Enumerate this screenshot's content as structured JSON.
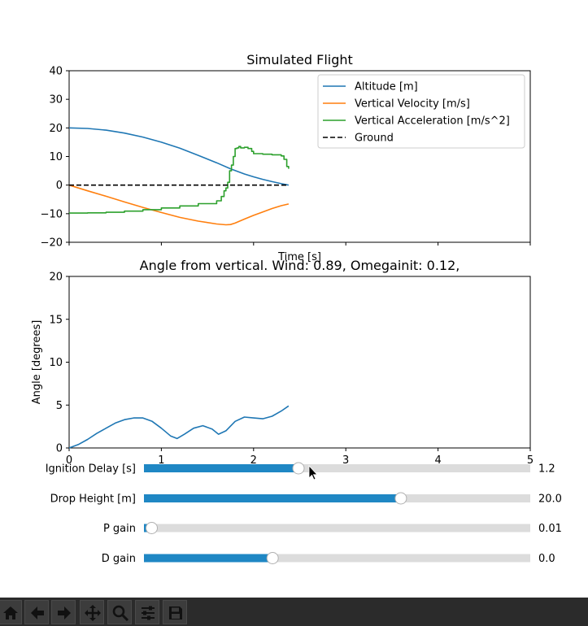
{
  "chart_data": [
    {
      "type": "line",
      "title": "Simulated Flight",
      "xlabel": "Time [s]",
      "ylabel": "",
      "xlim": [
        0,
        5
      ],
      "ylim": [
        -20,
        40
      ],
      "xticks": [
        0,
        1,
        2,
        3,
        4,
        5
      ],
      "yticks": [
        -20,
        -10,
        0,
        10,
        20,
        30,
        40
      ],
      "ytick_labels": [
        "−20",
        "−10",
        "0",
        "10",
        "20",
        "30",
        "40"
      ],
      "legend": "top-right",
      "series": [
        {
          "name": "Altitude [m]",
          "color": "#1f77b4",
          "style": "solid",
          "x": [
            0,
            0.2,
            0.4,
            0.6,
            0.8,
            1.0,
            1.2,
            1.4,
            1.6,
            1.75,
            1.9,
            2.0,
            2.1,
            2.2,
            2.3,
            2.38
          ],
          "y": [
            20.0,
            19.8,
            19.2,
            18.2,
            16.8,
            15.0,
            12.9,
            10.4,
            7.8,
            5.7,
            3.9,
            2.9,
            2.0,
            1.2,
            0.5,
            0.0
          ]
        },
        {
          "name": "Vertical Velocity [m/s]",
          "color": "#ff7f0e",
          "style": "solid",
          "x": [
            0,
            0.2,
            0.4,
            0.6,
            0.8,
            1.0,
            1.2,
            1.4,
            1.6,
            1.7,
            1.75,
            1.8,
            1.9,
            2.0,
            2.1,
            2.2,
            2.3,
            2.38
          ],
          "y": [
            0.0,
            -2.0,
            -3.9,
            -5.9,
            -7.8,
            -9.6,
            -11.3,
            -12.6,
            -13.6,
            -13.9,
            -13.8,
            -13.3,
            -11.9,
            -10.6,
            -9.4,
            -8.2,
            -7.2,
            -6.6
          ]
        },
        {
          "name": "Vertical Acceleration [m/s^2]",
          "color": "#2ca02c",
          "style": "step",
          "x": [
            0,
            0.2,
            0.4,
            0.6,
            0.8,
            1.0,
            1.2,
            1.4,
            1.6,
            1.65,
            1.68,
            1.7,
            1.72,
            1.74,
            1.76,
            1.78,
            1.8,
            1.82,
            1.84,
            1.86,
            1.9,
            1.94,
            1.98,
            2.0,
            2.1,
            2.2,
            2.3,
            2.33,
            2.36,
            2.38
          ],
          "y": [
            -9.8,
            -9.7,
            -9.5,
            -9.1,
            -8.6,
            -8.0,
            -7.3,
            -6.5,
            -5.5,
            -4.0,
            -2.0,
            -1.0,
            1.0,
            5.0,
            7.0,
            10.0,
            12.8,
            13.0,
            13.5,
            13.0,
            13.2,
            12.8,
            11.8,
            11.0,
            10.8,
            10.6,
            10.2,
            9.0,
            6.5,
            5.7
          ]
        },
        {
          "name": "Ground",
          "color": "#000000",
          "style": "dashed",
          "x": [
            0,
            2.38
          ],
          "y": [
            0,
            0
          ]
        }
      ]
    },
    {
      "type": "line",
      "title": "Angle from vertical. Wind: 0.89, Omegainit: 0.12,",
      "xlabel": "",
      "ylabel": "Angle [degrees]",
      "xlim": [
        0,
        5
      ],
      "ylim": [
        0,
        20
      ],
      "xticks": [
        0,
        1,
        2,
        3,
        4,
        5
      ],
      "yticks": [
        0,
        5,
        10,
        15,
        20
      ],
      "series": [
        {
          "name": "",
          "color": "#1f77b4",
          "style": "solid",
          "x": [
            0,
            0.1,
            0.2,
            0.3,
            0.4,
            0.5,
            0.6,
            0.7,
            0.8,
            0.9,
            1.0,
            1.1,
            1.17,
            1.25,
            1.35,
            1.45,
            1.55,
            1.62,
            1.7,
            1.8,
            1.9,
            2.0,
            2.1,
            2.2,
            2.3,
            2.38
          ],
          "y": [
            0.0,
            0.4,
            1.0,
            1.7,
            2.3,
            2.9,
            3.3,
            3.5,
            3.5,
            3.1,
            2.3,
            1.4,
            1.1,
            1.6,
            2.3,
            2.6,
            2.2,
            1.6,
            2.0,
            3.1,
            3.6,
            3.5,
            3.4,
            3.7,
            4.3,
            4.9
          ]
        }
      ]
    }
  ],
  "sliders": [
    {
      "label": "Ignition Delay [s]",
      "value": "1.2",
      "fraction": 0.4
    },
    {
      "label": "Drop Height [m]",
      "value": "20.0",
      "fraction": 0.665
    },
    {
      "label": "P gain",
      "value": "0.01",
      "fraction": 0.02
    },
    {
      "label": "D gain",
      "value": "0.0",
      "fraction": 0.333
    }
  ],
  "slider_color": "#1f87c4",
  "toolbar": [
    "home-icon",
    "back-arrow-icon",
    "forward-arrow-icon",
    "pan-icon",
    "zoom-icon",
    "configure-subplots-icon",
    "save-icon"
  ]
}
